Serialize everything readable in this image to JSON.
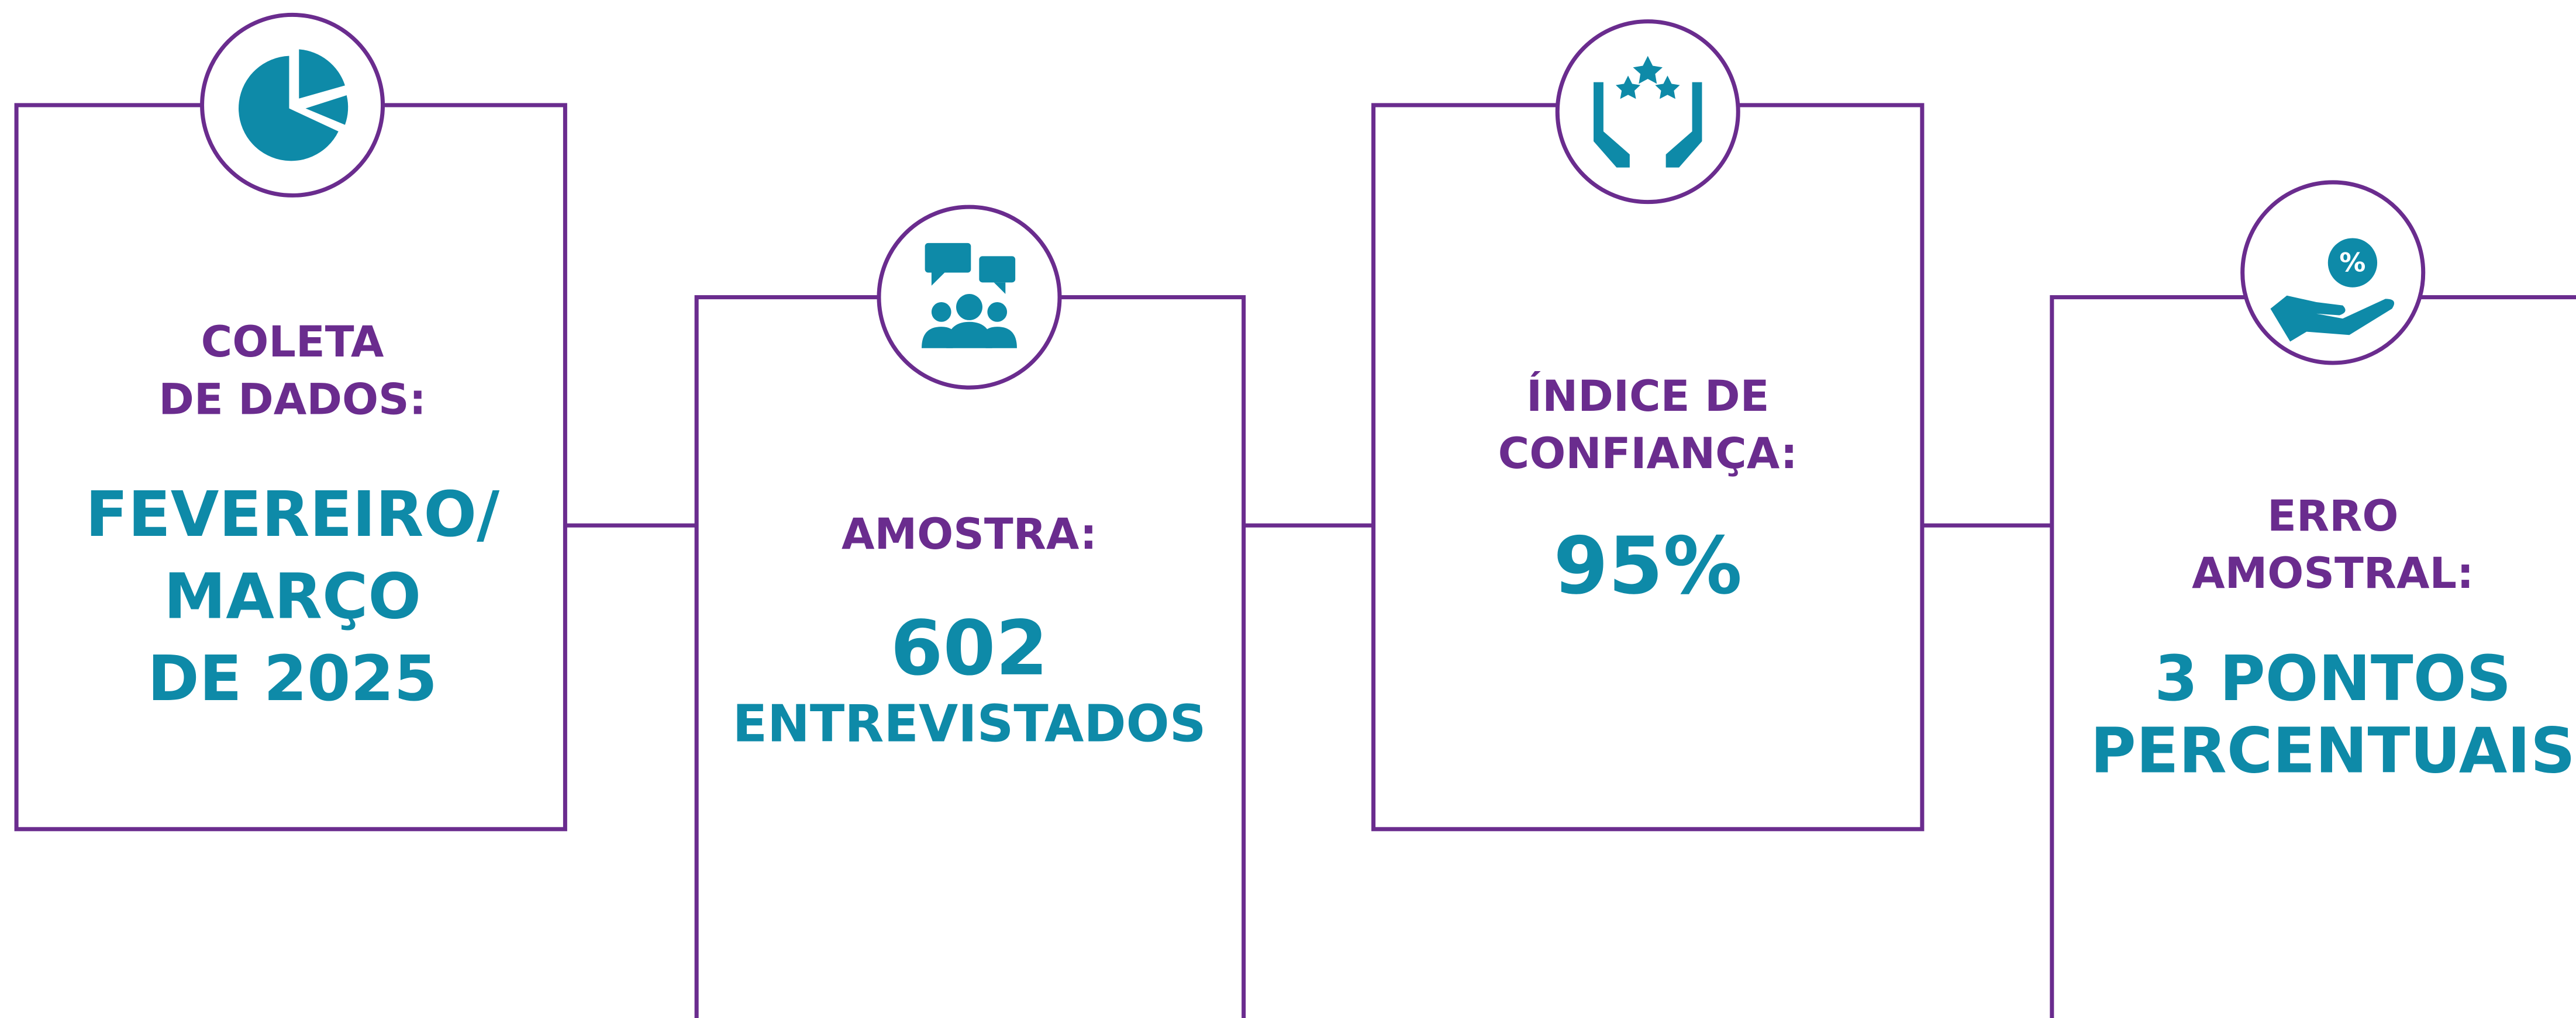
{
  "cards": [
    {
      "label": [
        "COLETA",
        "DE DADOS:"
      ],
      "value": [
        "FEVEREIRO/",
        "MARÇO",
        "DE 2025"
      ]
    },
    {
      "label": [
        "AMOSTRA:"
      ],
      "value": [
        "602",
        "ENTREVISTADOS"
      ]
    },
    {
      "label": [
        "ÍNDICE DE",
        "CONFIANÇA:"
      ],
      "value": [
        "95%"
      ]
    },
    {
      "label": [
        "ERRO",
        "AMOSTRAL:"
      ],
      "value": [
        "3 PONTOS",
        "PERCENTUAIS"
      ]
    }
  ]
}
